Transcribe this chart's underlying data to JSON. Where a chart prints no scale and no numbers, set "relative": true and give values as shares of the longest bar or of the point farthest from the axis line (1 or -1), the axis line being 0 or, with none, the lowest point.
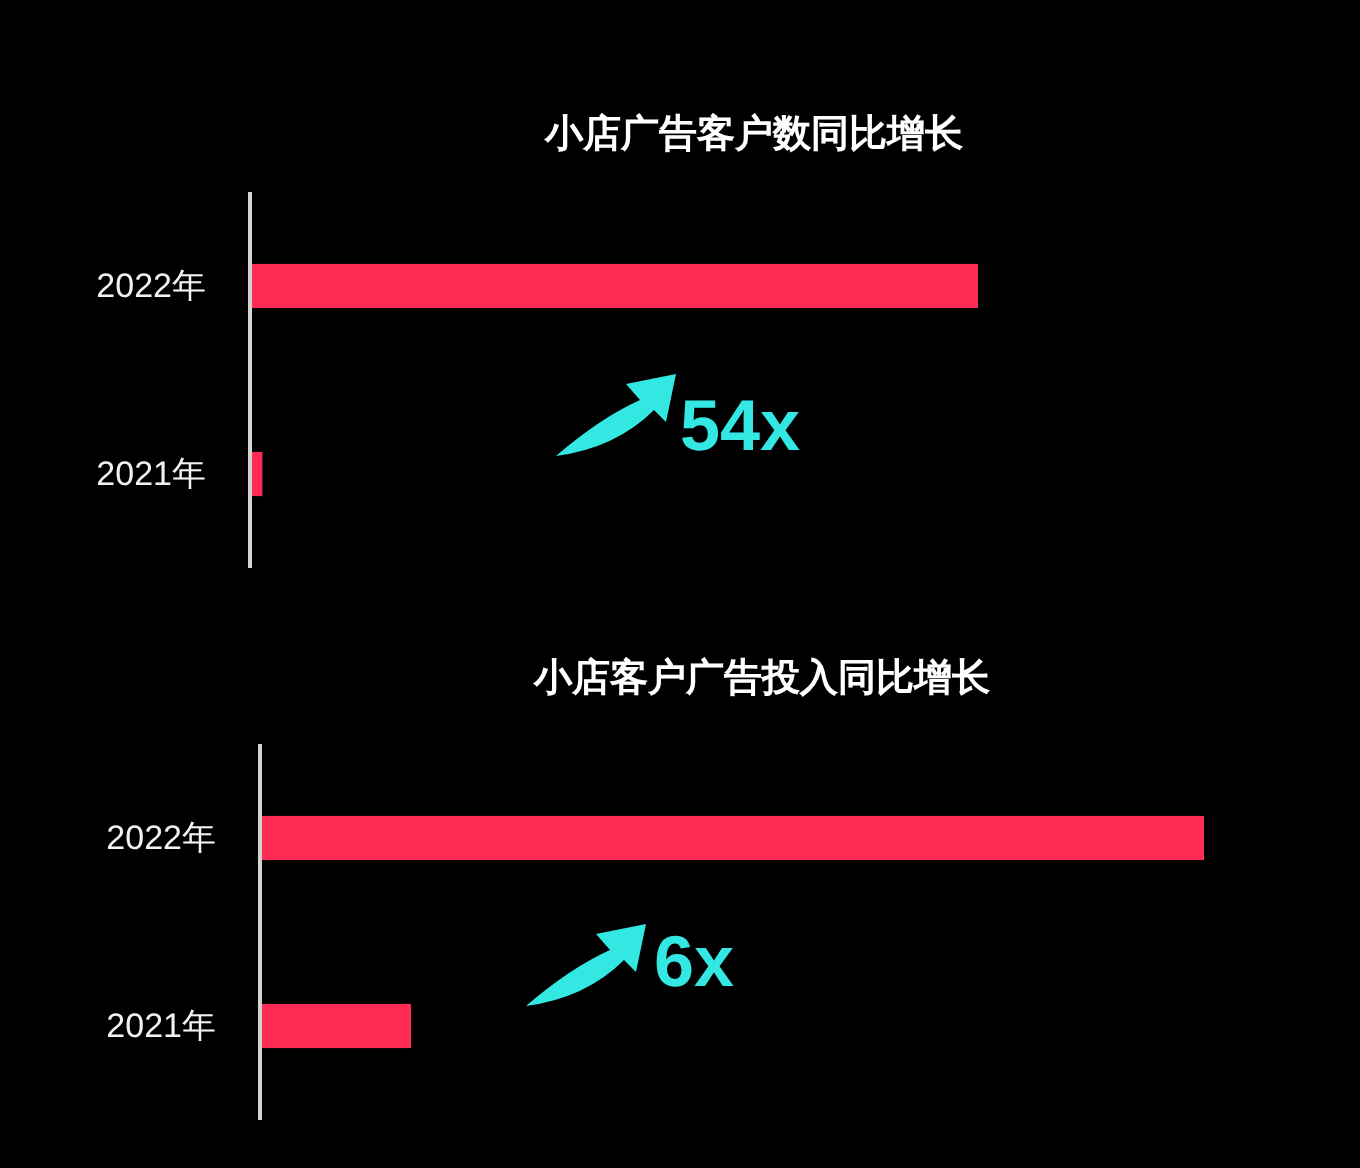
{
  "chart_data": [
    {
      "type": "bar",
      "title": "小店广告客户数同比增长",
      "orientation": "horizontal",
      "relative": true,
      "categories": [
        "2022年",
        "2021年"
      ],
      "values": [
        1,
        0.017
      ],
      "color": "#fe2c55",
      "annotations": [
        "54x"
      ]
    },
    {
      "type": "bar",
      "title": "小店客户广告投入同比增长",
      "orientation": "horizontal",
      "relative": true,
      "categories": [
        "2022年",
        "2021年"
      ],
      "values": [
        1,
        0.16
      ],
      "color": "#fe2c55",
      "annotations": [
        "6x"
      ]
    }
  ]
}
